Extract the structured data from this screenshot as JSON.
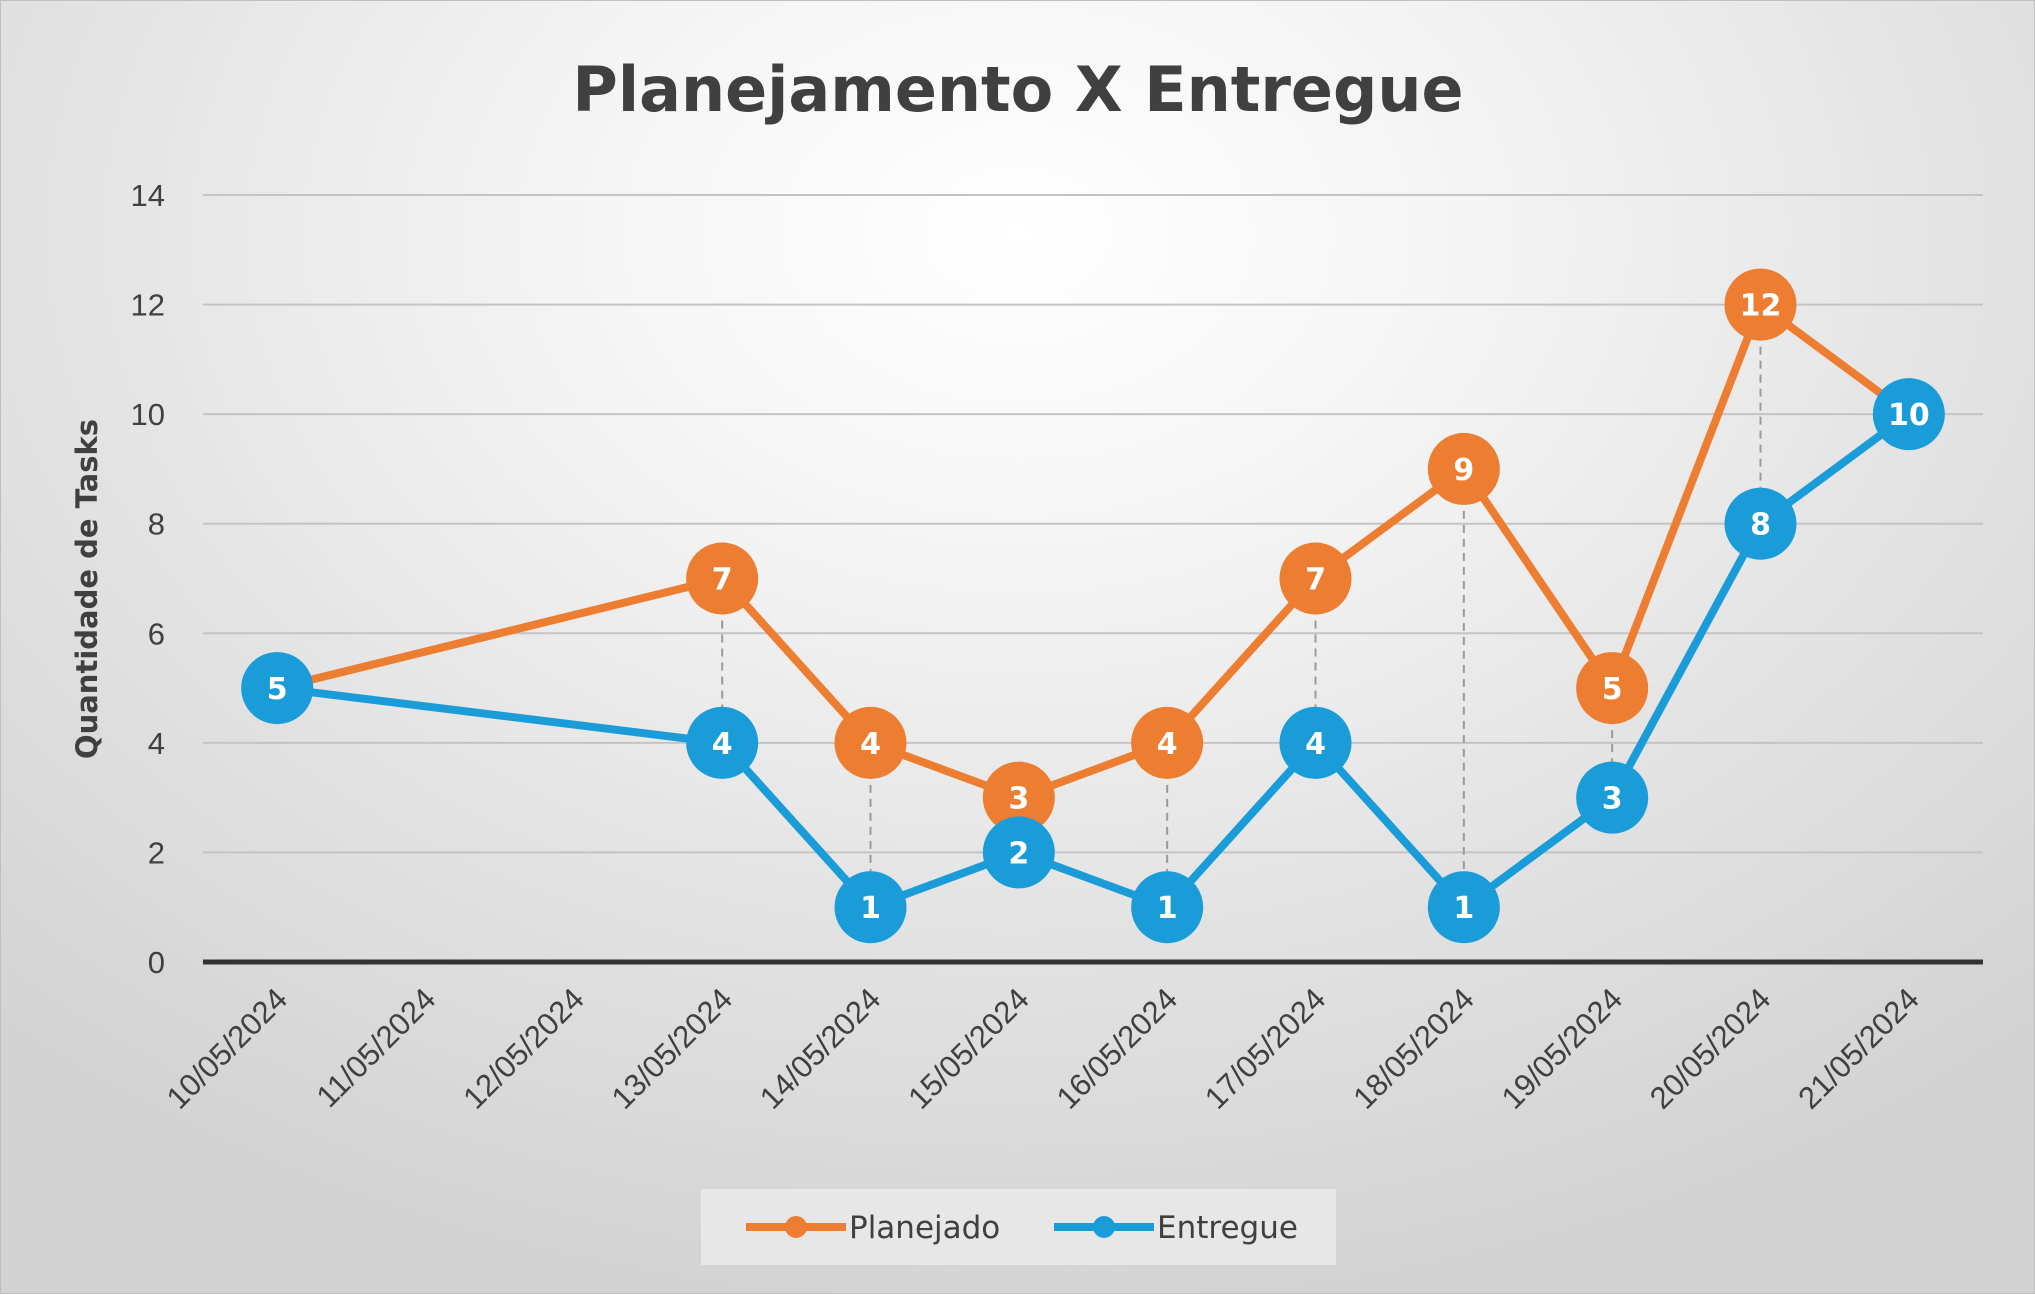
{
  "chart_data": {
    "type": "line",
    "title": "Planejamento X Entregue",
    "xlabel": "",
    "ylabel": "Quantidade de Tasks",
    "categories": [
      "10/05/2024",
      "11/05/2024",
      "12/05/2024",
      "13/05/2024",
      "14/05/2024",
      "15/05/2024",
      "16/05/2024",
      "17/05/2024",
      "18/05/2024",
      "19/05/2024",
      "20/05/2024",
      "21/05/2024"
    ],
    "ylim": [
      0,
      14
    ],
    "yticks": [
      "0",
      "2",
      "4",
      "6",
      "8",
      "10",
      "12",
      "14"
    ],
    "grid": true,
    "legend_position": "bottom",
    "data_labels": true,
    "drop_lines": true,
    "series": [
      {
        "name": "Planejado",
        "color": "#ed7d31",
        "values": [
          5,
          null,
          null,
          7,
          4,
          3,
          4,
          7,
          9,
          5,
          12,
          10
        ],
        "labels": [
          "",
          "",
          "",
          "7",
          "4",
          "3",
          "4",
          "7",
          "9",
          "5",
          "12",
          ""
        ]
      },
      {
        "name": "Entregue",
        "color": "#1a9cd8",
        "values": [
          5,
          null,
          null,
          4,
          1,
          2,
          1,
          4,
          1,
          3,
          8,
          10
        ],
        "labels": [
          "5",
          "",
          "",
          "4",
          "1",
          "2",
          "1",
          "4",
          "1",
          "3",
          "8",
          "10"
        ]
      }
    ]
  }
}
